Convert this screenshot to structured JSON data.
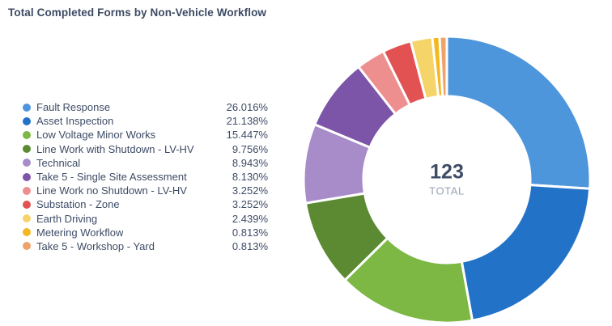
{
  "title": "Total Completed Forms by Non-Vehicle Workflow",
  "center": {
    "value": "123",
    "label": "TOTAL"
  },
  "chart_data": {
    "type": "pie",
    "subtype": "donut",
    "title": "Total Completed Forms by Non-Vehicle Workflow",
    "total": 123,
    "center_value": "123",
    "center_label": "TOTAL",
    "legend_position": "left",
    "start_angle_deg": 0,
    "direction": "clockwise",
    "series": [
      {
        "label": "Fault Response",
        "percent": 26.016,
        "percent_label": "26.016%",
        "color": "#4d96dc"
      },
      {
        "label": "Asset Inspection",
        "percent": 21.138,
        "percent_label": "21.138%",
        "color": "#2272c8"
      },
      {
        "label": "Low Voltage Minor Works",
        "percent": 15.447,
        "percent_label": "15.447%",
        "color": "#7cb843"
      },
      {
        "label": "Line Work with Shutdown - LV-HV",
        "percent": 9.756,
        "percent_label": "9.756%",
        "color": "#5c8a33"
      },
      {
        "label": "Technical",
        "percent": 8.943,
        "percent_label": "8.943%",
        "color": "#a78cc9"
      },
      {
        "label": "Take 5 - Single Site Assessment",
        "percent": 8.13,
        "percent_label": "8.130%",
        "color": "#7d55a8"
      },
      {
        "label": "Line Work no Shutdown - LV-HV",
        "percent": 3.252,
        "percent_label": "3.252%",
        "color": "#ee8f8f"
      },
      {
        "label": "Substation - Zone",
        "percent": 3.252,
        "percent_label": "3.252%",
        "color": "#e25252"
      },
      {
        "label": "Earth Driving",
        "percent": 2.439,
        "percent_label": "2.439%",
        "color": "#f5d469"
      },
      {
        "label": "Metering Workflow",
        "percent": 0.813,
        "percent_label": "0.813%",
        "color": "#f3b81f"
      },
      {
        "label": "Take 5 - Workshop - Yard",
        "percent": 0.813,
        "percent_label": "0.813%",
        "color": "#f0a26b"
      }
    ]
  },
  "colors": {
    "title_text": "#3d4a63",
    "legend_text": "#3e4c66",
    "center_value_text": "#3e4c66",
    "center_label_text": "#98a0b3",
    "background": "#ffffff",
    "segment_gap": "#ffffff"
  }
}
